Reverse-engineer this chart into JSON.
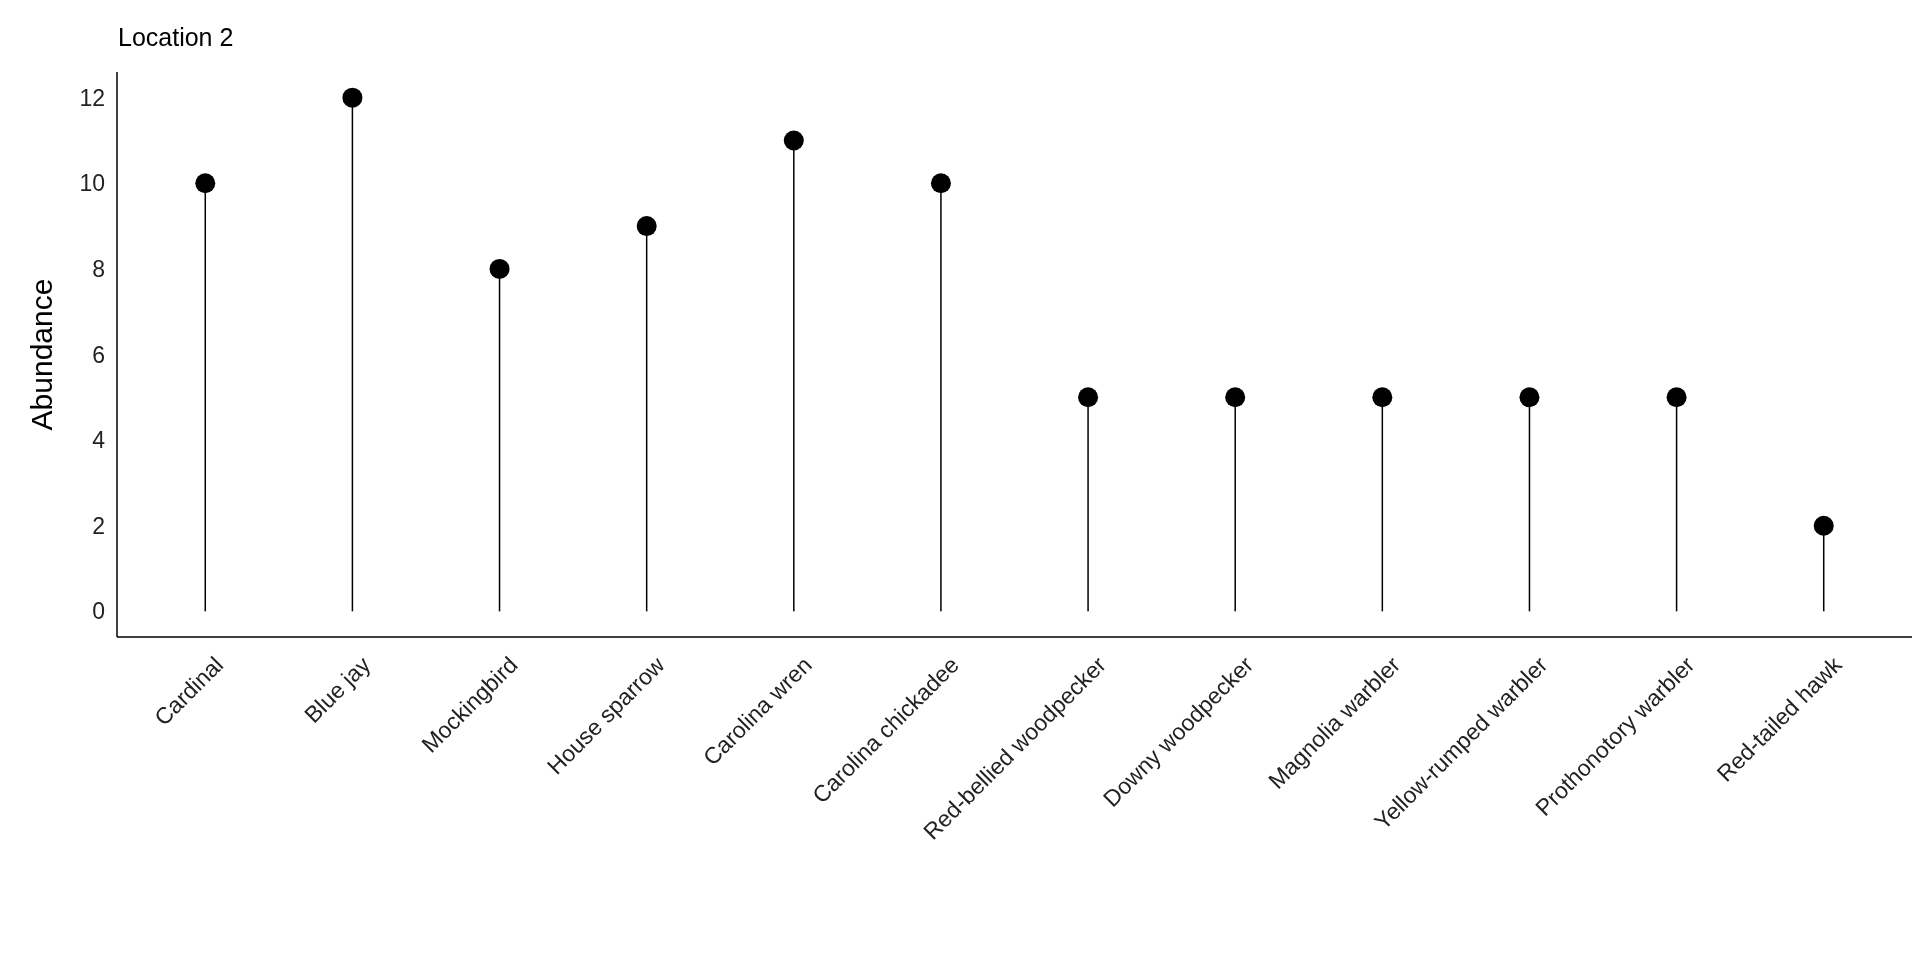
{
  "chart_data": {
    "type": "lollipop",
    "title": "Location 2",
    "ylabel": "Abundance",
    "categories": [
      "Cardinal",
      "Blue jay",
      "Mockingbird",
      "House sparrow",
      "Carolina wren",
      "Carolina chickadee",
      "Red-bellied woodpecker",
      "Downy woodpecker",
      "Magnolia warbler",
      "Yellow-rumped warbler",
      "Prothonotory warbler",
      "Red-tailed hawk"
    ],
    "values": [
      10,
      12,
      8,
      9,
      11,
      10,
      5,
      5,
      5,
      5,
      5,
      2
    ],
    "color": "#000000",
    "marker": "circle",
    "ylim": [
      -0.6,
      12.6
    ],
    "yticks": [
      0,
      2,
      4,
      6,
      8,
      10,
      12
    ]
  }
}
